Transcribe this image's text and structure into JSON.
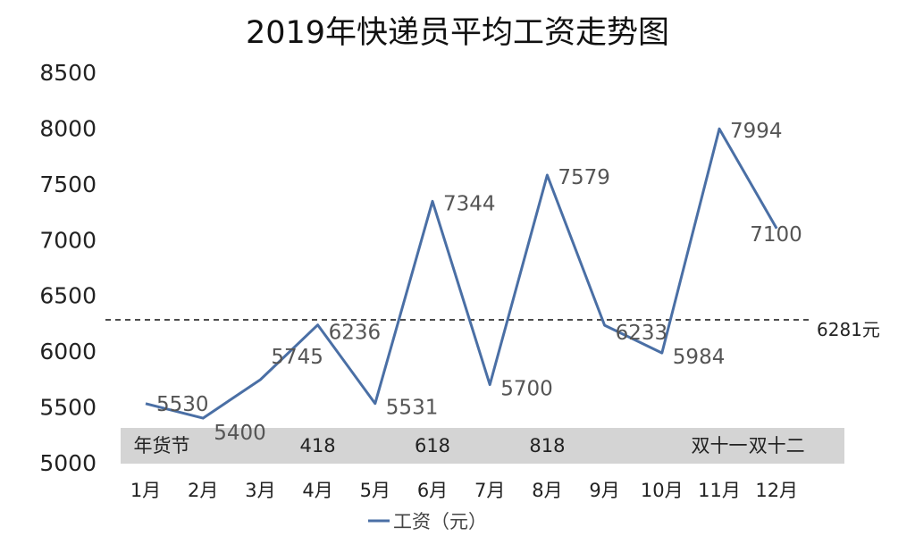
{
  "chart_data": {
    "type": "line",
    "title": "2019年快递员平均工资走势图",
    "categories": [
      "1月",
      "2月",
      "3月",
      "4月",
      "5月",
      "6月",
      "7月",
      "8月",
      "9月",
      "10月",
      "11月",
      "12月"
    ],
    "series": [
      {
        "name": "工资（元）",
        "values": [
          5530,
          5400,
          5745,
          6236,
          5531,
          7344,
          5700,
          7579,
          6233,
          5984,
          7994,
          7100
        ]
      }
    ],
    "data_labels": [
      "5530",
      "5400",
      "5745",
      "6236",
      "5531",
      "7344",
      "5700",
      "7579",
      "6233",
      "5984",
      "7994",
      "7100"
    ],
    "ylim": [
      5000,
      8500
    ],
    "yticks": [
      5000,
      5500,
      6000,
      6500,
      7000,
      7500,
      8000,
      8500
    ],
    "reference_line": {
      "value": 6281,
      "label": "6281元"
    },
    "events": [
      {
        "category": "1月",
        "label": "年货节"
      },
      {
        "category": "4月",
        "label": "418"
      },
      {
        "category": "6月",
        "label": "618"
      },
      {
        "category": "8月",
        "label": "818"
      },
      {
        "category": "11月",
        "label": "双十一"
      },
      {
        "category": "12月",
        "label": "双十二"
      }
    ],
    "legend_position": "bottom",
    "line_color": "#4a6fa5",
    "grid": false
  }
}
